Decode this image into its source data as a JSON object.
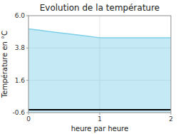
{
  "chart_data": {
    "type": "area",
    "title": "Evolution de la température",
    "x_label": "heure par heure",
    "y_label": "Température en °C",
    "x": [
      0,
      0.083,
      0.167,
      0.25,
      0.333,
      0.417,
      0.5,
      0.583,
      0.667,
      0.75,
      0.833,
      0.917,
      1.0,
      1.083,
      1.167,
      1.25,
      1.333,
      1.417,
      1.5,
      1.583,
      1.667,
      1.75,
      1.833,
      1.917,
      2.0
    ],
    "y": [
      5.1,
      5.05,
      5.0,
      4.95,
      4.9,
      4.85,
      4.8,
      4.75,
      4.7,
      4.65,
      4.6,
      4.55,
      4.5,
      4.5,
      4.5,
      4.5,
      4.5,
      4.5,
      4.5,
      4.5,
      4.5,
      4.5,
      4.5,
      4.5,
      4.5
    ],
    "xlim": [
      0,
      2
    ],
    "ylim": [
      -0.6,
      6.0
    ],
    "xticks": [
      0,
      1,
      2
    ],
    "yticks": [
      -0.6,
      1.6,
      3.8,
      {
        "value": 6.0,
        "label": "6.0"
      }
    ],
    "hline": -0.4,
    "color": "#7ecfe8",
    "grid": true
  }
}
